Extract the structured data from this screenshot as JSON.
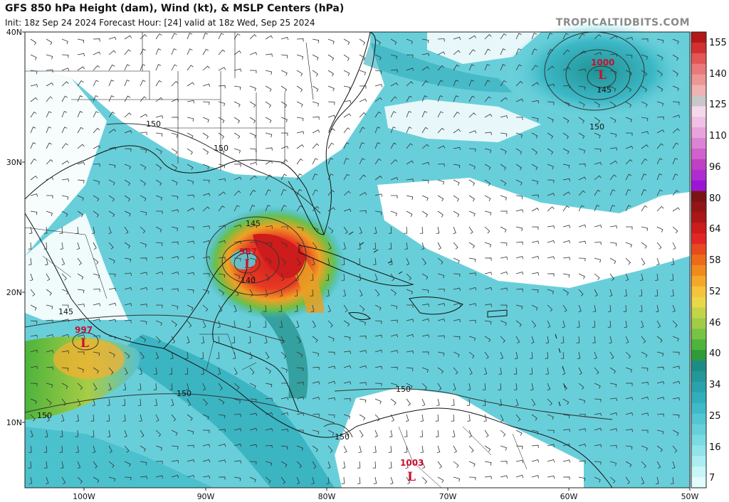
{
  "header": {
    "title": "GFS 850 hPa Height (dam), Wind (kt), & MSLP Centers (hPa)",
    "subtitle": "Init: 18z Sep 24 2024   Forecast Hour: [24]   valid at 18z Wed, Sep 25 2024",
    "brand": "TROPICALTIDBITS.COM"
  },
  "map": {
    "lat_labels": [
      "40N",
      "30N",
      "20N",
      "10N"
    ],
    "lon_labels": [
      "100W",
      "90W",
      "80W",
      "70W",
      "60W",
      "50W"
    ],
    "height_contour_labels": [
      "150",
      "150",
      "145",
      "140",
      "145",
      "150",
      "150",
      "150",
      "150",
      "145",
      "150"
    ],
    "low_centers": [
      {
        "label": "L",
        "pressure": "987"
      },
      {
        "label": "L",
        "pressure": "997"
      },
      {
        "label": "L",
        "pressure": "1000"
      },
      {
        "label": "L",
        "pressure": "1003"
      }
    ]
  },
  "colorbar": {
    "labels": [
      "155",
      "140",
      "125",
      "110",
      "96",
      "80",
      "64",
      "58",
      "52",
      "46",
      "40",
      "34",
      "25",
      "16",
      "7"
    ],
    "colors": [
      "#b21818",
      "#d22f2f",
      "#e25656",
      "#ea7a7a",
      "#ec9696",
      "#f0b2b2",
      "#c8c8c8",
      "#f5d8ec",
      "#f0c0e6",
      "#e8a3dc",
      "#dc84d4",
      "#cf62cc",
      "#c040c4",
      "#ae2cd2",
      "#9a16d4",
      "#7a1414",
      "#921616",
      "#ac1616",
      "#cc1c1c",
      "#e22626",
      "#e84a1e",
      "#ec6b1a",
      "#f18a1c",
      "#f4a82a",
      "#f5c43c",
      "#e8d84a",
      "#c4d44a",
      "#a0cc46",
      "#78c444",
      "#4eb43c",
      "#2e9c3a",
      "#1e8c86",
      "#23979a",
      "#28a2ac",
      "#31aebb",
      "#3fbac8",
      "#52c6d2",
      "#66d0da",
      "#7adbe2",
      "#90e4ea",
      "#aaeef2",
      "#c6f6f8",
      "#e2fbfc"
    ]
  }
}
